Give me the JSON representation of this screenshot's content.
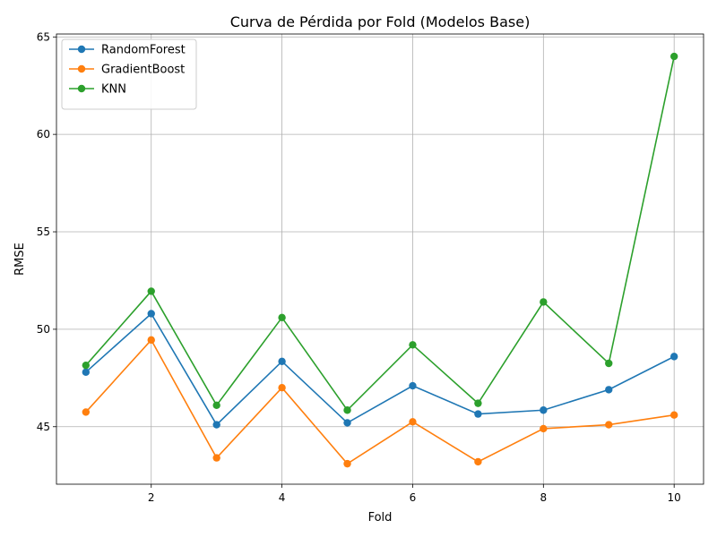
{
  "chart_data": {
    "type": "line",
    "title": "Curva de Pérdida por Fold (Modelos Base)",
    "xlabel": "Fold",
    "ylabel": "RMSE",
    "x": [
      1,
      2,
      3,
      4,
      5,
      6,
      7,
      8,
      9,
      10
    ],
    "xlim": [
      0.55,
      10.45
    ],
    "ylim": [
      42.05,
      65.15
    ],
    "xticks": [
      2,
      4,
      6,
      8,
      10
    ],
    "yticks": [
      45,
      50,
      55,
      60,
      65
    ],
    "grid": true,
    "legend": "top-left",
    "series": [
      {
        "name": "RandomForest",
        "color": "#1f77b4",
        "values": [
          47.8,
          50.8,
          45.1,
          48.35,
          45.2,
          47.1,
          45.65,
          45.85,
          46.9,
          48.6
        ]
      },
      {
        "name": "GradientBoost",
        "color": "#ff7f0e",
        "values": [
          45.75,
          49.45,
          43.4,
          47.0,
          43.1,
          45.25,
          43.2,
          44.9,
          45.1,
          45.6
        ]
      },
      {
        "name": "KNN",
        "color": "#2ca02c",
        "values": [
          48.15,
          51.95,
          46.1,
          50.6,
          45.85,
          49.2,
          46.2,
          51.4,
          48.25,
          64.0
        ]
      }
    ]
  }
}
